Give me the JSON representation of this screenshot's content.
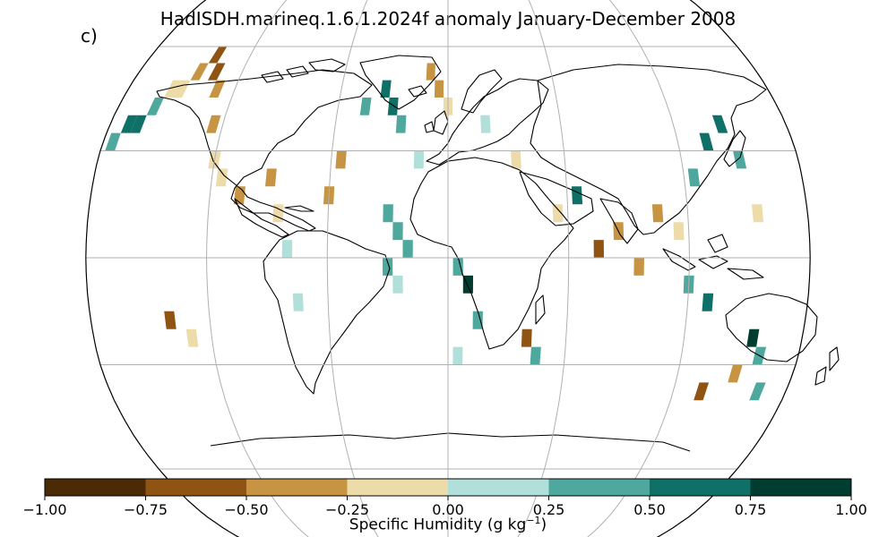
{
  "title": "HadISDH.marineq.1.6.1.2024f anomaly January-December 2008",
  "panel_label": "c)",
  "colorbar": {
    "label_main": "Specific Humidity (g kg",
    "label_sup": "−1",
    "label_end": ")",
    "ticks": [
      "−1.00",
      "−0.75",
      "−0.50",
      "−0.25",
      "0.00",
      "0.25",
      "0.50",
      "0.75",
      "1.00"
    ],
    "colors": [
      "#4a2b05",
      "#8f5314",
      "#c79443",
      "#eedbaa",
      "#b0e0d9",
      "#4fa89d",
      "#0e7066",
      "#013c31"
    ]
  },
  "chart_data": {
    "type": "heatmap",
    "projection": "Robinson",
    "variable": "Specific Humidity anomaly",
    "units": "g kg-1",
    "period": "January-December 2008",
    "color_range": [
      -1.0,
      1.0
    ],
    "bins": [
      -1.0,
      -0.75,
      -0.5,
      -0.25,
      0.0,
      0.25,
      0.5,
      0.75,
      1.0
    ],
    "graticule_lon": [
      -120,
      -60,
      0,
      60,
      120
    ],
    "graticule_lat": [
      -60,
      -30,
      0,
      30,
      60
    ],
    "cell_size_deg": 5,
    "cells": [
      {
        "lon": -175,
        "lat": 32.5,
        "v": 0.3
      },
      {
        "lon": -170,
        "lat": 37.5,
        "v": 0.6
      },
      {
        "lon": -165,
        "lat": 37.5,
        "v": 0.6
      },
      {
        "lon": -160,
        "lat": 42.5,
        "v": 0.3
      },
      {
        "lon": -155,
        "lat": 47.5,
        "v": -0.1
      },
      {
        "lon": -150,
        "lat": 47.5,
        "v": -0.1
      },
      {
        "lon": -145,
        "lat": 52.5,
        "v": -0.4
      },
      {
        "lon": -140,
        "lat": 57.5,
        "v": -0.6
      },
      {
        "lon": -135,
        "lat": 52.5,
        "v": -0.6
      },
      {
        "lon": -130,
        "lat": 47.5,
        "v": -0.4
      },
      {
        "lon": -125,
        "lat": 37.5,
        "v": -0.4
      },
      {
        "lon": -120,
        "lat": 27.5,
        "v": -0.1
      },
      {
        "lon": -115,
        "lat": 22.5,
        "v": -0.1
      },
      {
        "lon": -105,
        "lat": 17.5,
        "v": -0.4
      },
      {
        "lon": -90,
        "lat": 22.5,
        "v": -0.4
      },
      {
        "lon": -85,
        "lat": 12.5,
        "v": -0.1
      },
      {
        "lon": -80,
        "lat": 2.5,
        "v": 0.1
      },
      {
        "lon": -75,
        "lat": -12.5,
        "v": 0.1
      },
      {
        "lon": -60,
        "lat": 17.5,
        "v": -0.4
      },
      {
        "lon": -55,
        "lat": 27.5,
        "v": -0.4
      },
      {
        "lon": -45,
        "lat": 42.5,
        "v": 0.3
      },
      {
        "lon": -35,
        "lat": 47.5,
        "v": 0.6
      },
      {
        "lon": -30,
        "lat": 42.5,
        "v": 0.6
      },
      {
        "lon": -25,
        "lat": 37.5,
        "v": 0.3
      },
      {
        "lon": -30,
        "lat": 12.5,
        "v": 0.3
      },
      {
        "lon": -25,
        "lat": 7.5,
        "v": 0.3
      },
      {
        "lon": -20,
        "lat": 2.5,
        "v": 0.3
      },
      {
        "lon": -30,
        "lat": -2.5,
        "v": 0.3
      },
      {
        "lon": -25,
        "lat": -7.5,
        "v": 0.1
      },
      {
        "lon": -15,
        "lat": 27.5,
        "v": 0.1
      },
      {
        "lon": -10,
        "lat": 52.5,
        "v": -0.4
      },
      {
        "lon": -5,
        "lat": 47.5,
        "v": -0.4
      },
      {
        "lon": 0,
        "lat": 42.5,
        "v": -0.1
      },
      {
        "lon": 5,
        "lat": -2.5,
        "v": 0.3
      },
      {
        "lon": 10,
        "lat": -7.5,
        "v": 0.9
      },
      {
        "lon": 15,
        "lat": -17.5,
        "v": 0.3
      },
      {
        "lon": 5,
        "lat": -27.5,
        "v": 0.1
      },
      {
        "lon": 20,
        "lat": 37.5,
        "v": 0.1
      },
      {
        "lon": 35,
        "lat": 27.5,
        "v": -0.1
      },
      {
        "lon": 40,
        "lat": -22.5,
        "v": -0.6
      },
      {
        "lon": 45,
        "lat": -27.5,
        "v": 0.3
      },
      {
        "lon": 55,
        "lat": 12.5,
        "v": -0.1
      },
      {
        "lon": 65,
        "lat": 17.5,
        "v": 0.6
      },
      {
        "lon": 75,
        "lat": 2.5,
        "v": -0.6
      },
      {
        "lon": 85,
        "lat": 7.5,
        "v": -0.4
      },
      {
        "lon": 95,
        "lat": -2.5,
        "v": -0.4
      },
      {
        "lon": 105,
        "lat": 12.5,
        "v": -0.4
      },
      {
        "lon": 115,
        "lat": 7.5,
        "v": -0.1
      },
      {
        "lon": 125,
        "lat": 22.5,
        "v": 0.3
      },
      {
        "lon": 135,
        "lat": 32.5,
        "v": 0.6
      },
      {
        "lon": 145,
        "lat": 37.5,
        "v": 0.6
      },
      {
        "lon": 150,
        "lat": 27.5,
        "v": 0.3
      },
      {
        "lon": 155,
        "lat": 12.5,
        "v": -0.1
      },
      {
        "lon": 120,
        "lat": -7.5,
        "v": 0.3
      },
      {
        "lon": 130,
        "lat": -12.5,
        "v": 0.6
      },
      {
        "lon": 155,
        "lat": -22.5,
        "v": 0.9
      },
      {
        "lon": 160,
        "lat": -27.5,
        "v": 0.3
      },
      {
        "lon": 150,
        "lat": -32.5,
        "v": -0.4
      },
      {
        "lon": 165,
        "lat": -37.5,
        "v": 0.3
      },
      {
        "lon": 135,
        "lat": -37.5,
        "v": -0.6
      },
      {
        "lon": -140,
        "lat": -17.5,
        "v": -0.6
      },
      {
        "lon": -130,
        "lat": -22.5,
        "v": -0.1
      }
    ]
  }
}
